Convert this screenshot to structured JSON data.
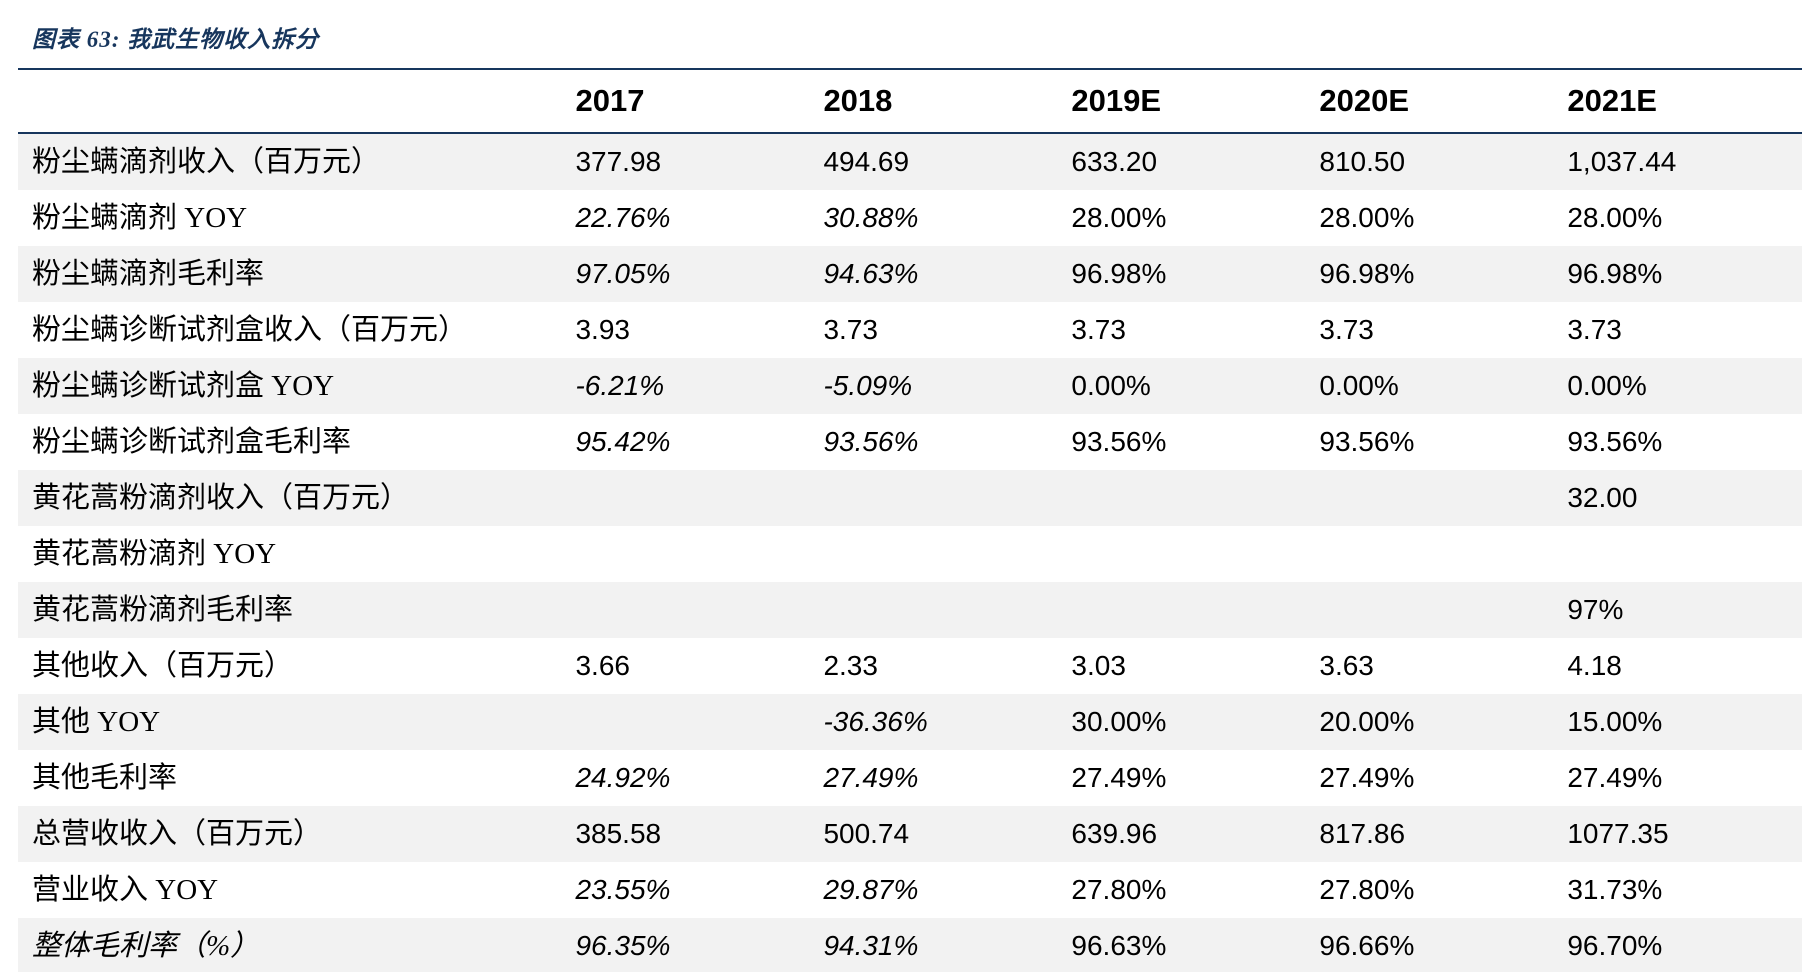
{
  "title": "图表 63:  我武生物收入拆分",
  "accent_color": "#17365D",
  "stripe_color": "#F2F2F2",
  "table": {
    "columns": [
      "",
      "2017",
      "2018",
      "2019E",
      "2020E",
      "2021E"
    ],
    "rows": [
      {
        "label": "粉尘螨滴剂收入（百万元）",
        "label_italic": false,
        "values": [
          "377.98",
          "494.69",
          "633.20",
          "810.50",
          "1,037.44"
        ],
        "italic": [
          false,
          false,
          false,
          false,
          false
        ]
      },
      {
        "label": "粉尘螨滴剂 YOY",
        "label_italic": false,
        "values": [
          "22.76%",
          "30.88%",
          "28.00%",
          "28.00%",
          "28.00%"
        ],
        "italic": [
          true,
          true,
          false,
          false,
          false
        ]
      },
      {
        "label": "粉尘螨滴剂毛利率",
        "label_italic": false,
        "values": [
          "97.05%",
          "94.63%",
          "96.98%",
          "96.98%",
          "96.98%"
        ],
        "italic": [
          true,
          true,
          false,
          false,
          false
        ]
      },
      {
        "label": "粉尘螨诊断试剂盒收入（百万元）",
        "label_italic": false,
        "values": [
          "3.93",
          "3.73",
          "3.73",
          "3.73",
          "3.73"
        ],
        "italic": [
          false,
          false,
          false,
          false,
          false
        ]
      },
      {
        "label": "粉尘螨诊断试剂盒 YOY",
        "label_italic": false,
        "values": [
          "-6.21%",
          "-5.09%",
          "0.00%",
          "0.00%",
          "0.00%"
        ],
        "italic": [
          true,
          true,
          false,
          false,
          false
        ]
      },
      {
        "label": "粉尘螨诊断试剂盒毛利率",
        "label_italic": false,
        "values": [
          "95.42%",
          "93.56%",
          "93.56%",
          "93.56%",
          "93.56%"
        ],
        "italic": [
          true,
          true,
          false,
          false,
          false
        ]
      },
      {
        "label": "黄花蒿粉滴剂收入（百万元）",
        "label_italic": false,
        "values": [
          "",
          "",
          "",
          "",
          "32.00"
        ],
        "italic": [
          false,
          false,
          false,
          false,
          false
        ]
      },
      {
        "label": "黄花蒿粉滴剂 YOY",
        "label_italic": false,
        "values": [
          "",
          "",
          "",
          "",
          ""
        ],
        "italic": [
          false,
          false,
          false,
          false,
          false
        ]
      },
      {
        "label": "黄花蒿粉滴剂毛利率",
        "label_italic": false,
        "values": [
          "",
          "",
          "",
          "",
          "97%"
        ],
        "italic": [
          false,
          false,
          false,
          false,
          false
        ]
      },
      {
        "label": "其他收入（百万元）",
        "label_italic": false,
        "values": [
          "3.66",
          "2.33",
          "3.03",
          "3.63",
          "4.18"
        ],
        "italic": [
          false,
          false,
          false,
          false,
          false
        ]
      },
      {
        "label": "其他 YOY",
        "label_italic": false,
        "values": [
          "",
          "-36.36%",
          "30.00%",
          "20.00%",
          "15.00%"
        ],
        "italic": [
          false,
          true,
          false,
          false,
          false
        ]
      },
      {
        "label": "其他毛利率",
        "label_italic": false,
        "values": [
          "24.92%",
          "27.49%",
          "27.49%",
          "27.49%",
          "27.49%"
        ],
        "italic": [
          true,
          true,
          false,
          false,
          false
        ]
      },
      {
        "label": "总营收收入（百万元）",
        "label_italic": false,
        "values": [
          "385.58",
          "500.74",
          "639.96",
          "817.86",
          "1077.35"
        ],
        "italic": [
          false,
          false,
          false,
          false,
          false
        ]
      },
      {
        "label": "营业收入 YOY",
        "label_italic": false,
        "values": [
          "23.55%",
          "29.87%",
          "27.80%",
          "27.80%",
          "31.73%"
        ],
        "italic": [
          true,
          true,
          false,
          false,
          false
        ]
      },
      {
        "label": "整体毛利率（%）",
        "label_italic": true,
        "values": [
          "96.35%",
          "94.31%",
          "96.63%",
          "96.66%",
          "96.70%"
        ],
        "italic": [
          true,
          true,
          false,
          false,
          false
        ]
      }
    ]
  }
}
